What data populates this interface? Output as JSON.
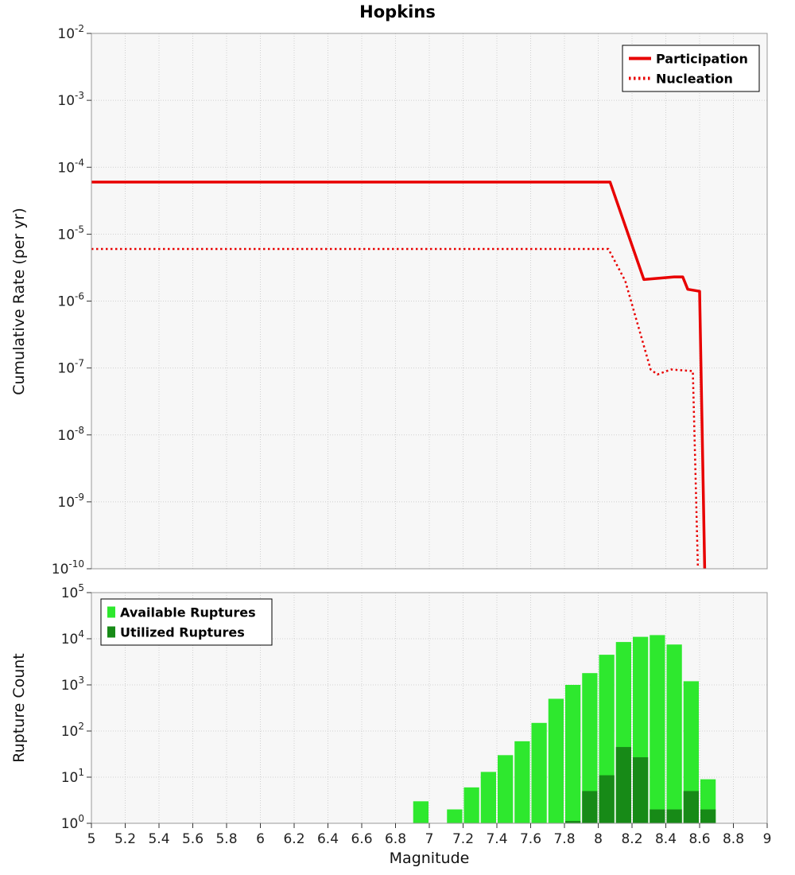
{
  "title": "Hopkins",
  "chart_data": [
    {
      "id": "cumulative-rate-chart",
      "type": "line",
      "title": "Hopkins",
      "ylabel": "Cumulative Rate (per yr)",
      "x_range": [
        5,
        9
      ],
      "x_tick_labels": [
        "5",
        "5.2",
        "5.4",
        "5.6",
        "5.8",
        "6",
        "6.2",
        "6.4",
        "6.6",
        "6.8",
        "7",
        "7.2",
        "7.4",
        "7.6",
        "7.8",
        "8",
        "8.2",
        "8.4",
        "8.6",
        "8.8",
        "9"
      ],
      "y_scale": "log",
      "y_exp_range": [
        -10,
        -2
      ],
      "y_tick_exponents": [
        -2,
        -3,
        -4,
        -5,
        -6,
        -7,
        -8,
        -9,
        -10
      ],
      "grid": true,
      "legend": {
        "position": "top-right"
      },
      "series": [
        {
          "name": "Participation",
          "color": "#e80000",
          "line": "solid",
          "width": 3.5,
          "points": [
            [
              5.0,
              6e-05
            ],
            [
              8.07,
              6e-05
            ],
            [
              8.13,
              2.2e-05
            ],
            [
              8.27,
              2.1e-06
            ],
            [
              8.45,
              2.3e-06
            ],
            [
              8.5,
              2.3e-06
            ],
            [
              8.53,
              1.5e-06
            ],
            [
              8.6,
              1.4e-06
            ],
            [
              8.63,
              1e-10
            ]
          ]
        },
        {
          "name": "Nucleation",
          "color": "#e80000",
          "line": "dotted",
          "width": 2.5,
          "points": [
            [
              5.0,
              6e-06
            ],
            [
              8.06,
              6e-06
            ],
            [
              8.16,
              2e-06
            ],
            [
              8.31,
              9.5e-08
            ],
            [
              8.35,
              8e-08
            ],
            [
              8.43,
              9.5e-08
            ],
            [
              8.56,
              9e-08
            ],
            [
              8.59,
              1e-10
            ]
          ]
        }
      ]
    },
    {
      "id": "rupture-count-chart",
      "type": "bar",
      "xlabel": "Magnitude",
      "ylabel": "Rupture Count",
      "x_range": [
        5,
        9
      ],
      "x_tick_labels": [
        "5",
        "5.2",
        "5.4",
        "5.6",
        "5.8",
        "6",
        "6.2",
        "6.4",
        "6.6",
        "6.8",
        "7",
        "7.2",
        "7.4",
        "7.6",
        "7.8",
        "8",
        "8.2",
        "8.4",
        "8.6",
        "8.8",
        "9"
      ],
      "y_scale": "log",
      "y_exp_range": [
        0,
        5
      ],
      "y_tick_exponents": [
        0,
        1,
        2,
        3,
        4,
        5
      ],
      "grid": true,
      "bar_width": 0.1,
      "legend": {
        "position": "top-left"
      },
      "series": [
        {
          "name": "Available Ruptures",
          "color": "#2ee82e",
          "x": [
            6.95,
            7.15,
            7.25,
            7.35,
            7.45,
            7.55,
            7.65,
            7.75,
            7.85,
            7.95,
            8.05,
            8.15,
            8.25,
            8.35,
            8.45,
            8.55,
            8.65
          ],
          "values": [
            3,
            2,
            6,
            13,
            30,
            60,
            150,
            500,
            1000,
            1800,
            4500,
            8500,
            11000,
            12000,
            7500,
            1200,
            9
          ]
        },
        {
          "name": "Utilized Ruptures",
          "color": "#178a17",
          "x": [
            7.85,
            7.95,
            8.05,
            8.15,
            8.25,
            8.35,
            8.45,
            8.55,
            8.65
          ],
          "values": [
            1,
            5,
            11,
            45,
            27,
            2,
            2,
            5,
            2
          ]
        }
      ]
    }
  ]
}
